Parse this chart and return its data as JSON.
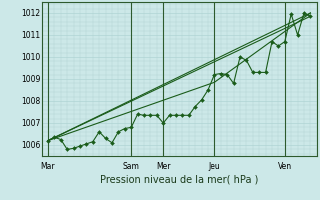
{
  "bg_color": "#cce8e8",
  "grid_color": "#b0d4d4",
  "line_color": "#1a5c1a",
  "marker_color": "#1a5c1a",
  "title": "Pression niveau de la mer( hPa )",
  "ylim": [
    1005.5,
    1012.5
  ],
  "yticks": [
    1006,
    1007,
    1008,
    1009,
    1010,
    1011,
    1012
  ],
  "day_labels": [
    "Mar",
    "Sam",
    "Mer",
    "Jeu",
    "Ven"
  ],
  "day_x": [
    0,
    13,
    18,
    26,
    37
  ],
  "vline_x": [
    0,
    13,
    18,
    26,
    37
  ],
  "xlim": [
    -1,
    42
  ],
  "series1_x": [
    0,
    1,
    2,
    3,
    4,
    5,
    6,
    7,
    8,
    9,
    10,
    11,
    12,
    13,
    14,
    15,
    16,
    17,
    18,
    19,
    20,
    21,
    22,
    23,
    24,
    25,
    26,
    27,
    28,
    29,
    30,
    31,
    32,
    33,
    34,
    35,
    36,
    37,
    38,
    39,
    40,
    41
  ],
  "series1_y": [
    1006.2,
    1006.35,
    1006.25,
    1005.8,
    1005.85,
    1005.95,
    1006.05,
    1006.15,
    1006.6,
    1006.3,
    1006.1,
    1006.6,
    1006.75,
    1006.8,
    1007.4,
    1007.35,
    1007.35,
    1007.35,
    1007.0,
    1007.35,
    1007.35,
    1007.35,
    1007.35,
    1007.75,
    1008.05,
    1008.5,
    1009.2,
    1009.25,
    1009.2,
    1008.8,
    1010.0,
    1009.85,
    1009.3,
    1009.3,
    1009.3,
    1010.7,
    1010.5,
    1010.7,
    1011.95,
    1011.0,
    1012.0,
    1011.85
  ],
  "series2_x": [
    0,
    41
  ],
  "series2_y": [
    1006.2,
    1012.0
  ],
  "series3_x": [
    0,
    41
  ],
  "series3_y": [
    1006.2,
    1011.85
  ],
  "series4_x": [
    0,
    26,
    41
  ],
  "series4_y": [
    1006.2,
    1008.85,
    1012.0
  ]
}
